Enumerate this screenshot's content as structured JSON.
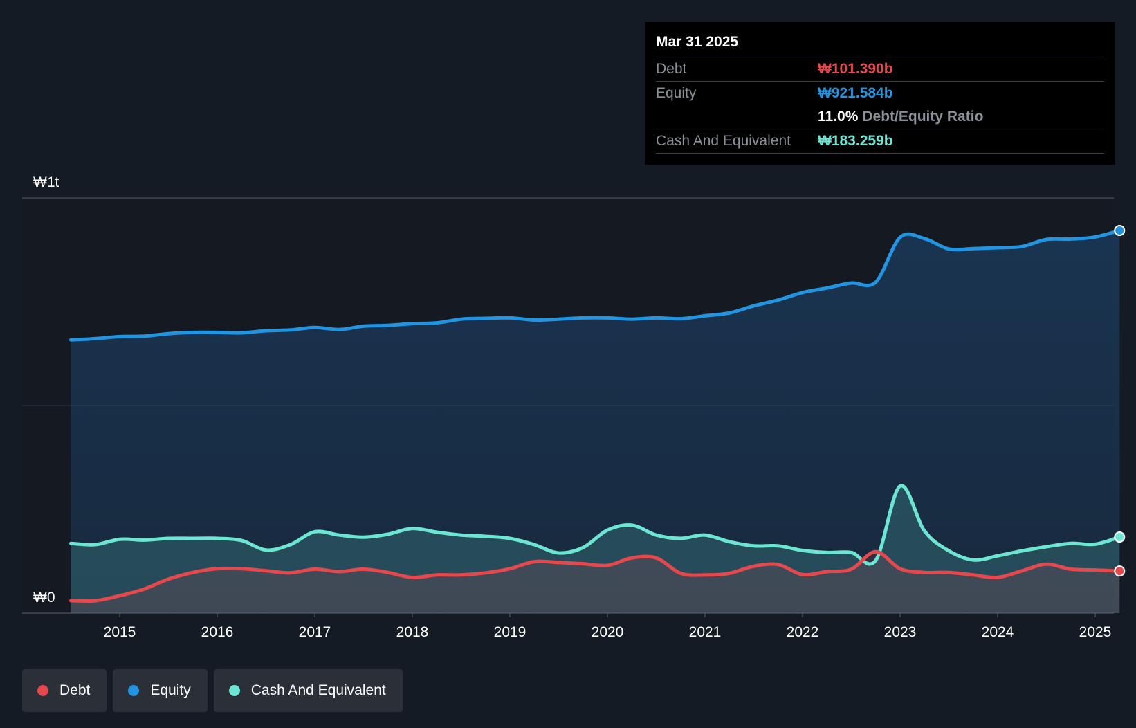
{
  "tooltip": {
    "date": "Mar 31 2025",
    "debt_label": "Debt",
    "debt_value": "₩101.390b",
    "equity_label": "Equity",
    "equity_value": "₩921.584b",
    "ratio_value": "11.0%",
    "ratio_label": "Debt/Equity Ratio",
    "cash_label": "Cash And Equivalent",
    "cash_value": "₩183.259b"
  },
  "legend": [
    {
      "label": "Debt",
      "color": "#e5484d"
    },
    {
      "label": "Equity",
      "color": "#2394df"
    },
    {
      "label": "Cash And Equivalent",
      "color": "#6ce5d3"
    }
  ],
  "chart_data": {
    "type": "area",
    "y_labels": [
      "₩1t",
      "₩0"
    ],
    "ylim": [
      0,
      1000
    ],
    "xlim": [
      2014.45,
      2025.25
    ],
    "x_ticks": [
      "2015",
      "2016",
      "2017",
      "2018",
      "2019",
      "2020",
      "2021",
      "2022",
      "2023",
      "2024",
      "2025"
    ],
    "grid": true,
    "series": [
      {
        "name": "Equity",
        "color": "#2394df",
        "x": [
          2014.5,
          2014.75,
          2015.0,
          2015.25,
          2015.5,
          2015.75,
          2016.0,
          2016.25,
          2016.5,
          2016.75,
          2017.0,
          2017.25,
          2017.5,
          2017.75,
          2018.0,
          2018.25,
          2018.5,
          2018.75,
          2019.0,
          2019.25,
          2019.5,
          2019.75,
          2020.0,
          2020.25,
          2020.5,
          2020.75,
          2021.0,
          2021.25,
          2021.5,
          2021.75,
          2022.0,
          2022.25,
          2022.5,
          2022.75,
          2023.0,
          2023.25,
          2023.5,
          2023.75,
          2024.0,
          2024.25,
          2024.5,
          2024.75,
          2025.0,
          2025.25
        ],
        "values": [
          658,
          661,
          666,
          667,
          673,
          676,
          676,
          675,
          680,
          682,
          688,
          683,
          691,
          693,
          697,
          699,
          708,
          710,
          711,
          706,
          708,
          711,
          711,
          708,
          711,
          709,
          716,
          723,
          740,
          754,
          772,
          783,
          795,
          797,
          905,
          902,
          877,
          878,
          880,
          883,
          900,
          901,
          906,
          921.584
        ]
      },
      {
        "name": "Cash And Equivalent",
        "color": "#6ce5d3",
        "x": [
          2014.5,
          2014.75,
          2015.0,
          2015.25,
          2015.5,
          2015.75,
          2016.0,
          2016.25,
          2016.5,
          2016.75,
          2017.0,
          2017.25,
          2017.5,
          2017.75,
          2018.0,
          2018.25,
          2018.5,
          2018.75,
          2019.0,
          2019.25,
          2019.5,
          2019.75,
          2020.0,
          2020.25,
          2020.5,
          2020.75,
          2021.0,
          2021.25,
          2021.5,
          2021.75,
          2022.0,
          2022.25,
          2022.5,
          2022.75,
          2023.0,
          2023.25,
          2023.5,
          2023.75,
          2024.0,
          2024.25,
          2024.5,
          2024.75,
          2025.0,
          2025.25
        ],
        "values": [
          168,
          165,
          178,
          176,
          180,
          180,
          180,
          175,
          152,
          165,
          196,
          188,
          183,
          190,
          204,
          195,
          188,
          185,
          180,
          165,
          145,
          158,
          200,
          212,
          188,
          180,
          188,
          172,
          162,
          162,
          151,
          146,
          146,
          127,
          306,
          198,
          150,
          128,
          138,
          150,
          160,
          168,
          166,
          183.259
        ]
      },
      {
        "name": "Debt",
        "color": "#e5484d",
        "x": [
          2014.5,
          2014.75,
          2015.0,
          2015.25,
          2015.5,
          2015.75,
          2016.0,
          2016.25,
          2016.5,
          2016.75,
          2017.0,
          2017.25,
          2017.5,
          2017.75,
          2018.0,
          2018.25,
          2018.5,
          2018.75,
          2019.0,
          2019.25,
          2019.5,
          2019.75,
          2020.0,
          2020.25,
          2020.5,
          2020.75,
          2021.0,
          2021.25,
          2021.5,
          2021.75,
          2022.0,
          2022.25,
          2022.5,
          2022.75,
          2023.0,
          2023.25,
          2023.5,
          2023.75,
          2024.0,
          2024.25,
          2024.5,
          2024.75,
          2025.0,
          2025.25
        ],
        "values": [
          30,
          30,
          42,
          58,
          82,
          98,
          107,
          107,
          102,
          97,
          106,
          100,
          106,
          98,
          86,
          92,
          92,
          97,
          107,
          124,
          122,
          119,
          115,
          133,
          133,
          96,
          92,
          96,
          113,
          117,
          93,
          100,
          106,
          148,
          107,
          98,
          98,
          92,
          86,
          102,
          118,
          106,
          104,
          101.39
        ]
      }
    ]
  }
}
